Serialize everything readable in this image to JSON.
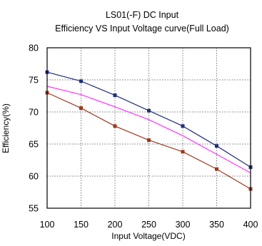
{
  "chart_data": {
    "type": "line",
    "title": "LS01(-F)  DC Input",
    "subtitle": "Efficiency VS Input Voltage curve(Full Load)",
    "xlabel": "Input Voltage(VDC)",
    "ylabel": "Efficiency(%)",
    "x": [
      100,
      150,
      200,
      250,
      300,
      350,
      400
    ],
    "xlim": [
      100,
      400
    ],
    "ylim": [
      55,
      80
    ],
    "xticks": [
      100,
      150,
      200,
      250,
      300,
      350,
      400
    ],
    "yticks": [
      55,
      60,
      65,
      70,
      75,
      80
    ],
    "grid": true,
    "legend": "none",
    "series": [
      {
        "color": "#1f2f78",
        "marker": "square",
        "values": [
          76.2,
          74.8,
          72.6,
          70.2,
          67.8,
          64.7,
          61.4
        ]
      },
      {
        "color": "#ff33ff",
        "marker": "none",
        "values": [
          74.0,
          72.7,
          70.8,
          68.8,
          66.3,
          63.4,
          60.5
        ]
      },
      {
        "color": "#a0381c",
        "marker": "square",
        "values": [
          73.0,
          70.6,
          67.8,
          65.6,
          63.8,
          61.1,
          58.0
        ]
      }
    ]
  }
}
